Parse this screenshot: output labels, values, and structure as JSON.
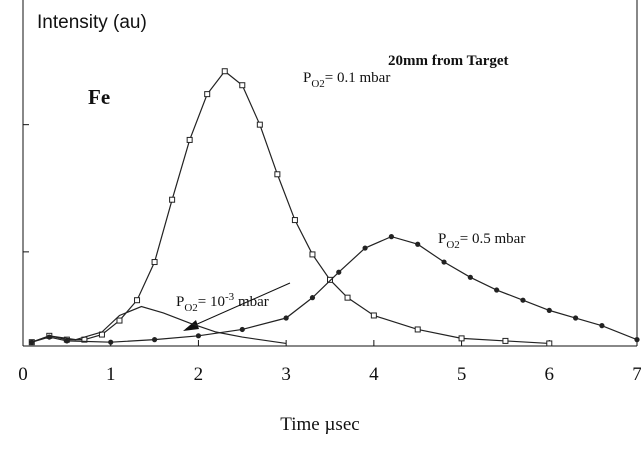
{
  "chart_data": {
    "type": "line",
    "x_label": "Time µsec",
    "y_label": "Intensity (au)",
    "annotations": [
      "Fe",
      "20mm from Target"
    ],
    "xlim": [
      0,
      7
    ],
    "xticks": [
      0,
      1,
      2,
      3,
      4,
      5,
      6,
      7
    ],
    "ylim": [
      0.26,
      2.98
    ],
    "yticks": [
      1,
      2
    ],
    "series": [
      {
        "label": {
          "base": "P",
          "sub": "O2",
          "text": "= 0.1 mbar"
        },
        "marker": "square",
        "color": "#222",
        "x": [
          0.1,
          0.3,
          0.5,
          0.7,
          0.9,
          1.1,
          1.3,
          1.5,
          1.7,
          1.9,
          2.1,
          2.3,
          2.5,
          2.7,
          2.9,
          3.1,
          3.3,
          3.5,
          3.7,
          4.0,
          4.5,
          5.0,
          5.5,
          6.0
        ],
        "values": [
          0.29,
          0.34,
          0.31,
          0.31,
          0.35,
          0.46,
          0.62,
          0.92,
          1.41,
          1.88,
          2.24,
          2.42,
          2.31,
          2.0,
          1.61,
          1.25,
          0.98,
          0.78,
          0.64,
          0.5,
          0.39,
          0.32,
          0.3,
          0.28
        ]
      },
      {
        "label": {
          "base": "P",
          "sub": "O2",
          "text": "= 0.5 mbar"
        },
        "marker": "circle",
        "color": "#222",
        "x": [
          0.1,
          0.3,
          0.5,
          1.0,
          1.5,
          2.0,
          2.5,
          3.0,
          3.3,
          3.6,
          3.9,
          4.2,
          4.5,
          4.8,
          5.1,
          5.4,
          5.7,
          6.0,
          6.3,
          6.6,
          7.0
        ],
        "values": [
          0.29,
          0.33,
          0.3,
          0.29,
          0.31,
          0.34,
          0.39,
          0.48,
          0.64,
          0.84,
          1.03,
          1.12,
          1.06,
          0.92,
          0.8,
          0.7,
          0.62,
          0.54,
          0.48,
          0.42,
          0.31
        ]
      },
      {
        "label": {
          "base": "P",
          "sub": "O2",
          "text": "= 10",
          "sup": "-3",
          "tail": " mbar"
        },
        "marker": "none",
        "color": "#222",
        "x": [
          0.1,
          0.3,
          0.6,
          0.9,
          1.1,
          1.35,
          1.6,
          1.9,
          2.2,
          2.5,
          3.0
        ],
        "values": [
          0.29,
          0.34,
          0.31,
          0.37,
          0.5,
          0.57,
          0.52,
          0.44,
          0.37,
          0.33,
          0.28
        ]
      }
    ]
  }
}
